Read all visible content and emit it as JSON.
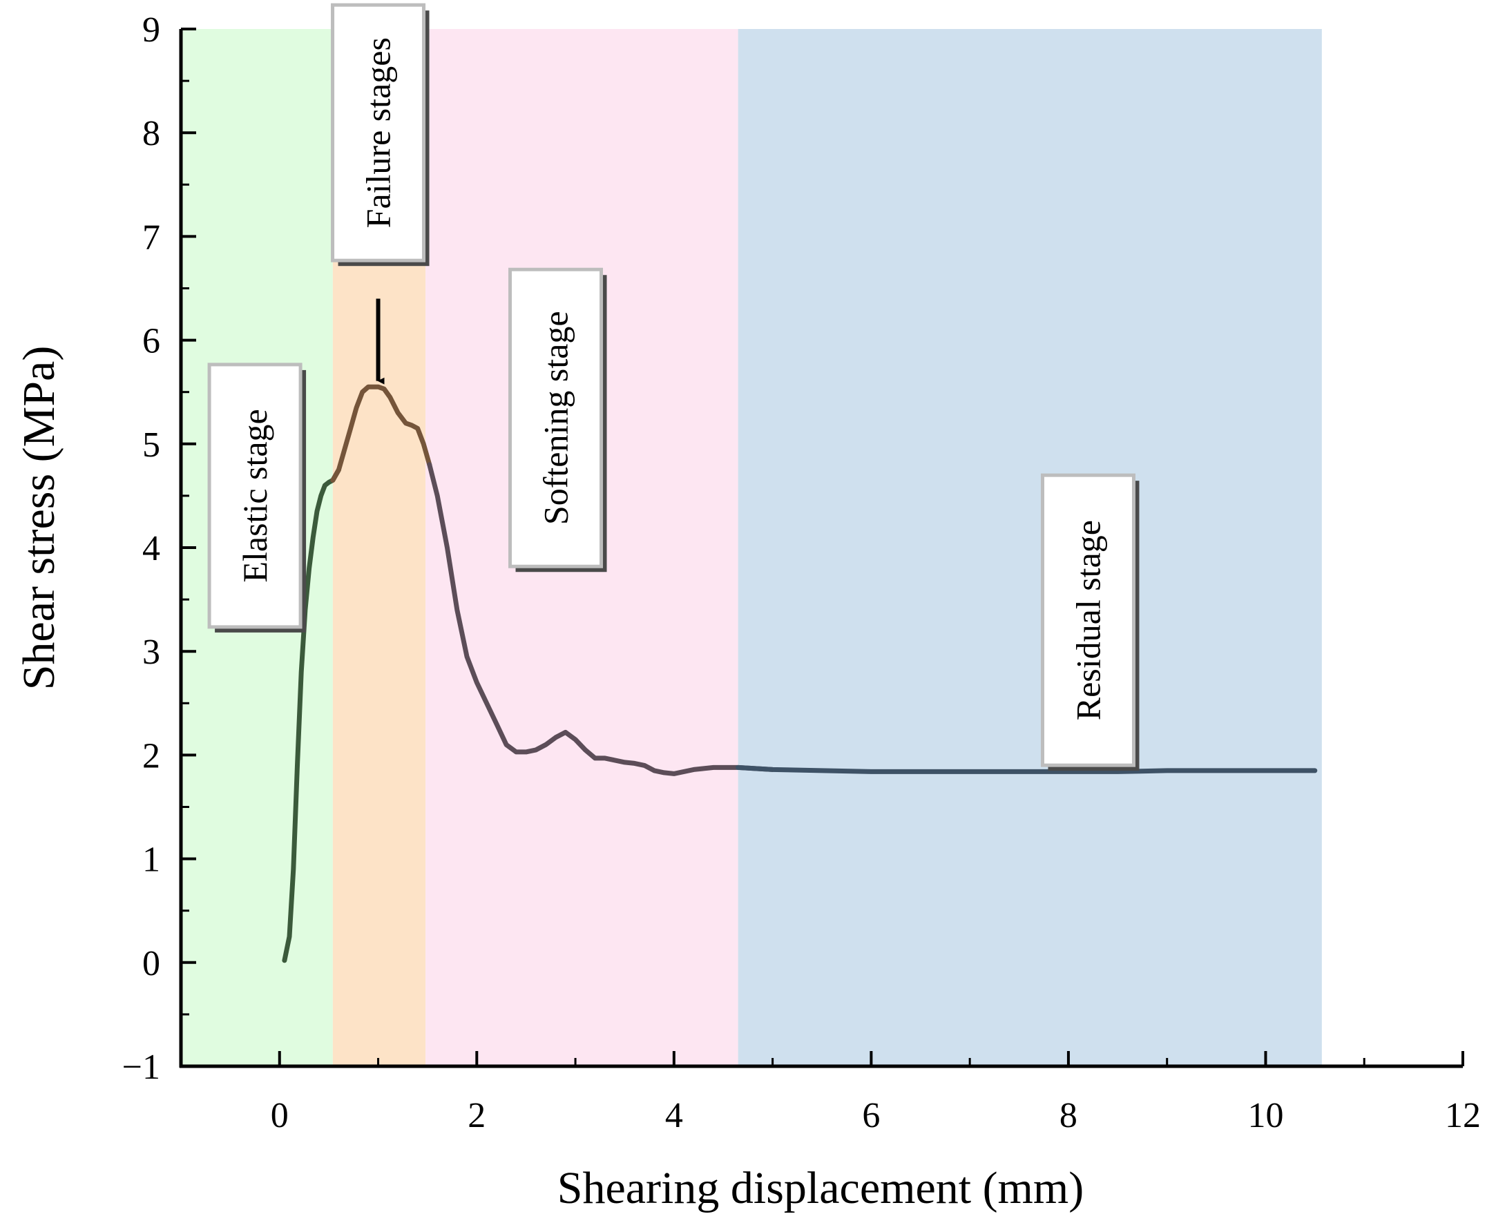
{
  "chart_data": {
    "type": "line",
    "title": "",
    "xlabel": "Shearing displacement (mm)",
    "ylabel": "Shear stress (MPa)",
    "xlim": [
      -1,
      12
    ],
    "ylim": [
      -1,
      9
    ],
    "x_ticks": [
      0,
      2,
      4,
      6,
      8,
      10,
      12
    ],
    "y_ticks": [
      -1,
      0,
      1,
      2,
      3,
      4,
      5,
      6,
      7,
      8,
      9
    ],
    "x_tick_labels": [
      "0",
      "2",
      "4",
      "6",
      "8",
      "10",
      "12"
    ],
    "y_tick_labels": [
      "−1",
      "0",
      "1",
      "2",
      "3",
      "4",
      "5",
      "6",
      "7",
      "8",
      "9"
    ],
    "grid": false,
    "stages": [
      {
        "name": "Elastic stage",
        "x_start": -1,
        "x_end": 0.54,
        "color": "#e0fce0",
        "label_y": 4.5
      },
      {
        "name": "Failure stages",
        "x_start": 0.54,
        "x_end": 1.48,
        "color": "#fde3c7",
        "label_y": 8.0
      },
      {
        "name": "Softening stage",
        "x_start": 1.48,
        "x_end": 4.65,
        "color": "#fde6f2",
        "label_y": 5.25
      },
      {
        "name": "Residual stage",
        "x_start": 4.65,
        "x_end": 10.57,
        "color": "#cfe0ee",
        "label_y": 3.3
      }
    ],
    "annotation": {
      "text": "Failure stages",
      "arrow_from": [
        1.0,
        6.6
      ],
      "arrow_to": [
        1.0,
        5.58
      ]
    },
    "series": [
      {
        "name": "Shear stress",
        "x": [
          0.05,
          0.1,
          0.14,
          0.18,
          0.22,
          0.26,
          0.3,
          0.34,
          0.38,
          0.42,
          0.46,
          0.5,
          0.54,
          0.6,
          0.66,
          0.72,
          0.78,
          0.84,
          0.9,
          0.96,
          1.0,
          1.06,
          1.12,
          1.2,
          1.28,
          1.34,
          1.4,
          1.46,
          1.52,
          1.6,
          1.7,
          1.8,
          1.9,
          2.0,
          2.1,
          2.2,
          2.3,
          2.4,
          2.5,
          2.6,
          2.7,
          2.8,
          2.9,
          3.0,
          3.1,
          3.2,
          3.3,
          3.4,
          3.5,
          3.6,
          3.7,
          3.8,
          3.9,
          4.0,
          4.1,
          4.2,
          4.3,
          4.4,
          4.5,
          4.6,
          4.65,
          5.0,
          5.5,
          6.0,
          6.5,
          7.0,
          7.5,
          8.0,
          8.5,
          9.0,
          9.5,
          10.0,
          10.5
        ],
        "y": [
          0.02,
          0.25,
          0.9,
          1.9,
          2.8,
          3.4,
          3.8,
          4.1,
          4.35,
          4.5,
          4.6,
          4.63,
          4.65,
          4.75,
          4.95,
          5.15,
          5.35,
          5.5,
          5.55,
          5.55,
          5.55,
          5.53,
          5.45,
          5.3,
          5.2,
          5.18,
          5.15,
          5.0,
          4.8,
          4.5,
          4.0,
          3.4,
          2.95,
          2.7,
          2.5,
          2.3,
          2.1,
          2.03,
          2.03,
          2.05,
          2.1,
          2.17,
          2.22,
          2.15,
          2.05,
          1.97,
          1.97,
          1.95,
          1.93,
          1.92,
          1.9,
          1.85,
          1.83,
          1.82,
          1.84,
          1.86,
          1.87,
          1.88,
          1.88,
          1.88,
          1.88,
          1.86,
          1.85,
          1.84,
          1.84,
          1.84,
          1.84,
          1.84,
          1.84,
          1.85,
          1.85,
          1.85,
          1.85
        ],
        "colors": {
          "elastic": "#3b5a3b",
          "failure": "#75553a",
          "softening": "#5c4d58",
          "residual": "#3e5266"
        }
      }
    ]
  }
}
